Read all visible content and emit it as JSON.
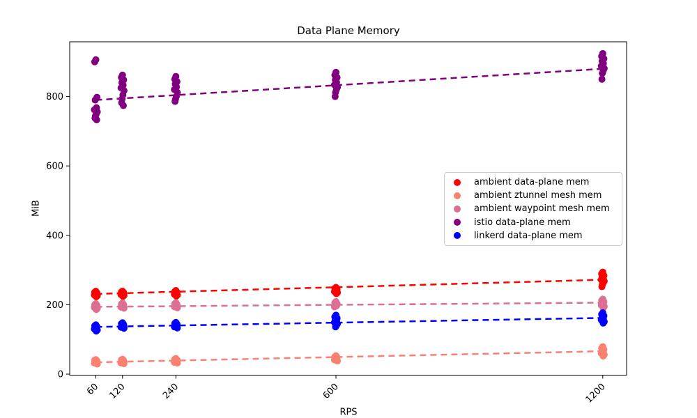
{
  "title": "Data Plane Memory",
  "axes": {
    "xlabel": "RPS",
    "ylabel": "MiB",
    "x_ticks": [
      60,
      120,
      240,
      600,
      1200
    ],
    "y_ticks": [
      0,
      200,
      400,
      600,
      800
    ]
  },
  "chart_data": {
    "type": "scatter",
    "title": "Data Plane Memory",
    "xlabel": "RPS",
    "ylabel": "MiB",
    "x_scale": "linear",
    "xlim": [
      0,
      1258
    ],
    "ylim": [
      -4,
      958
    ],
    "x_ticks": [
      60,
      120,
      240,
      600,
      1200
    ],
    "y_ticks": [
      0,
      200,
      400,
      600,
      800
    ],
    "grid": false,
    "legend_position": "center-right",
    "series": [
      {
        "name": "ambient data-plane mem",
        "color": "#ff0000",
        "points": {
          "60": [
            239,
            236,
            234,
            232,
            230,
            228,
            226,
            223
          ],
          "120": [
            239,
            237,
            235,
            233,
            231,
            229,
            227,
            224
          ],
          "240": [
            241,
            238,
            236,
            234,
            232,
            230,
            228,
            225
          ],
          "600": [
            250,
            247,
            244,
            242,
            240,
            238,
            235,
            232
          ],
          "1200": [
            294,
            289,
            284,
            280,
            276,
            272,
            268,
            263,
            258,
            252
          ]
        },
        "trend": {
          "x": [
            60,
            1200
          ],
          "y": [
            231,
            272
          ]
        }
      },
      {
        "name": "ambient ztunnel mesh mem",
        "color": "#fa8072",
        "points": {
          "60": [
            42,
            40,
            38,
            36,
            34,
            32,
            29
          ],
          "120": [
            43,
            41,
            39,
            37,
            35,
            32,
            30
          ],
          "240": [
            45,
            43,
            41,
            39,
            37,
            34,
            32
          ],
          "600": [
            53,
            50,
            48,
            46,
            44,
            41,
            38
          ],
          "1200": [
            79,
            75,
            71,
            68,
            64,
            60,
            56,
            52
          ]
        },
        "trend": {
          "x": [
            60,
            1200
          ],
          "y": [
            34,
            66
          ]
        }
      },
      {
        "name": "ambient waypoint mesh mem",
        "color": "#db7093",
        "points": {
          "60": [
            203,
            200,
            198,
            196,
            194,
            192,
            189,
            186
          ],
          "120": [
            205,
            202,
            200,
            198,
            196,
            193,
            190
          ],
          "240": [
            206,
            203,
            201,
            199,
            197,
            194,
            191
          ],
          "600": [
            209,
            206,
            203,
            200,
            197,
            194
          ],
          "1200": [
            216,
            212,
            209,
            206,
            203,
            199,
            195,
            191
          ]
        },
        "trend": {
          "x": [
            60,
            1200
          ],
          "y": [
            194,
            206
          ]
        }
      },
      {
        "name": "istio data-plane mem",
        "color": "#800080",
        "points": {
          "60": [
            906,
            900,
            798,
            790,
            768,
            762,
            756,
            750,
            744,
            738,
            733
          ],
          "120": [
            862,
            855,
            848,
            840,
            833,
            825,
            817,
            805,
            793,
            782,
            774
          ],
          "240": [
            858,
            850,
            843,
            836,
            828,
            820,
            812,
            800,
            792,
            786
          ],
          "600": [
            870,
            862,
            855,
            848,
            841,
            834,
            827,
            820,
            812,
            800
          ],
          "1200": [
            924,
            916,
            909,
            902,
            895,
            888,
            881,
            874,
            867,
            850
          ]
        },
        "trend": {
          "x": [
            60,
            1200
          ],
          "y": [
            790,
            880
          ]
        }
      },
      {
        "name": "linkerd data-plane mem",
        "color": "#0000ff",
        "points": {
          "60": [
            142,
            139,
            137,
            135,
            133,
            130,
            127,
            124
          ],
          "120": [
            148,
            145,
            143,
            141,
            138,
            135,
            132
          ],
          "240": [
            149,
            146,
            144,
            142,
            139,
            136,
            133
          ],
          "600": [
            170,
            165,
            161,
            157,
            153,
            149,
            145,
            140,
            136
          ],
          "1200": [
            177,
            172,
            168,
            164,
            160,
            156,
            151,
            147
          ]
        },
        "trend": {
          "x": [
            60,
            1200
          ],
          "y": [
            136,
            162
          ]
        }
      }
    ]
  },
  "style": {
    "marker_radius": 5,
    "trend_dash": "9 6",
    "axis_color": "#000000",
    "legend_border_color": "#cccccc"
  }
}
